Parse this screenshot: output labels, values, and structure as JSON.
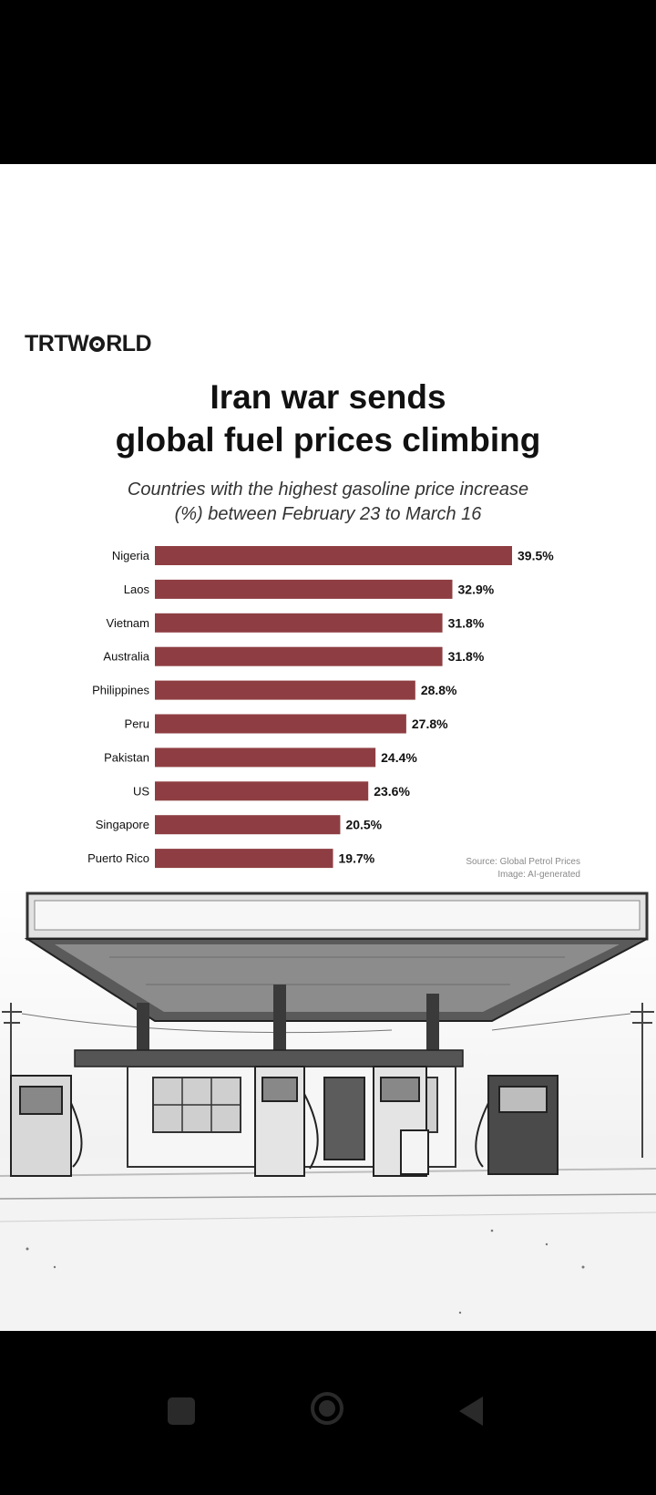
{
  "brand": {
    "logo_pre": "TRTW",
    "logo_post": "RLD"
  },
  "title": {
    "line1": "Iran war sends",
    "line2": "global fuel prices climbing"
  },
  "subtitle": {
    "line1": "Countries with the highest gasoline price increase",
    "line2": "(%) between February 23 to March 16"
  },
  "source": {
    "line1": "Source: Global Petrol Prices",
    "line2": "Image: AI-generated"
  },
  "colors": {
    "bar": "#8e3e42",
    "background": "#ffffff",
    "frame": "#000000"
  },
  "chart_data": {
    "type": "bar",
    "orientation": "horizontal",
    "categories": [
      "Nigeria",
      "Laos",
      "Vietnam",
      "Australia",
      "Philippines",
      "Peru",
      "Pakistan",
      "US",
      "Singapore",
      "Puerto Rico"
    ],
    "values": [
      39.5,
      32.9,
      31.8,
      31.8,
      28.8,
      27.8,
      24.4,
      23.6,
      20.5,
      19.7
    ],
    "value_labels": [
      "39.5%",
      "32.9%",
      "31.8%",
      "31.8%",
      "28.8%",
      "27.8%",
      "24.4%",
      "23.6%",
      "20.5%",
      "19.7%"
    ],
    "unit": "%",
    "xlim": [
      0,
      39.5
    ],
    "grid": false,
    "legend": "none"
  },
  "navbar": {
    "icons": [
      "recent-apps-icon",
      "home-icon",
      "back-icon"
    ]
  }
}
